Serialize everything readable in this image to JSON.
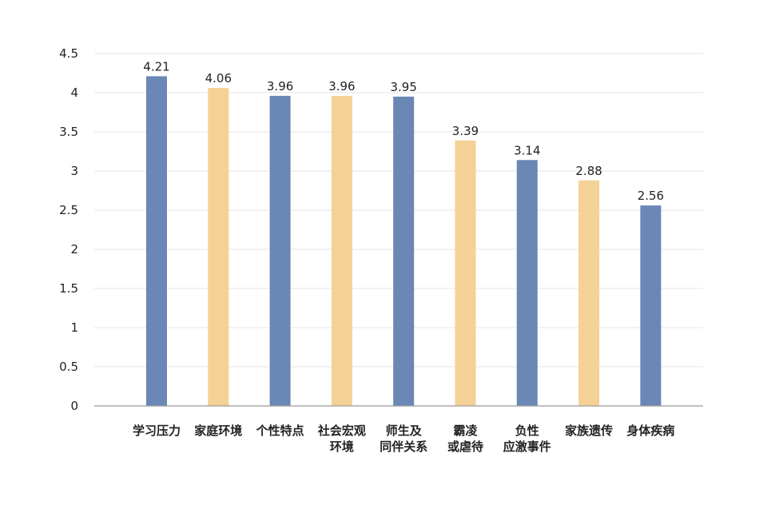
{
  "chart_data": {
    "type": "bar",
    "categories": [
      [
        "学习压力"
      ],
      [
        "家庭环境"
      ],
      [
        "个性特点"
      ],
      [
        "社会宏观",
        "环境"
      ],
      [
        "师生及",
        "同伴关系"
      ],
      [
        "霸凌",
        "或虐待"
      ],
      [
        "负性",
        "应激事件"
      ],
      [
        "家族遗传"
      ],
      [
        "身体疾病"
      ]
    ],
    "values": [
      4.21,
      4.06,
      3.96,
      3.96,
      3.95,
      3.39,
      3.14,
      2.88,
      2.56
    ],
    "value_labels": [
      "4.21",
      "4.06",
      "3.96",
      "3.96",
      "3.95",
      "3.39",
      "3.14",
      "2.88",
      "2.56"
    ],
    "y_ticks": [
      "0",
      "0.5",
      "1",
      "1.5",
      "2",
      "2.5",
      "3",
      "3.5",
      "4",
      "4.5"
    ],
    "ylim": [
      0,
      4.5
    ],
    "grid": true,
    "legend": "none",
    "colors": {
      "blue": "#6a87b5",
      "yellow": "#f4d196",
      "grid": "#e6e6e6",
      "axis": "#9a9a9a"
    },
    "bar_colors": [
      "blue",
      "yellow",
      "blue",
      "yellow",
      "blue",
      "yellow",
      "blue",
      "yellow",
      "blue"
    ]
  }
}
